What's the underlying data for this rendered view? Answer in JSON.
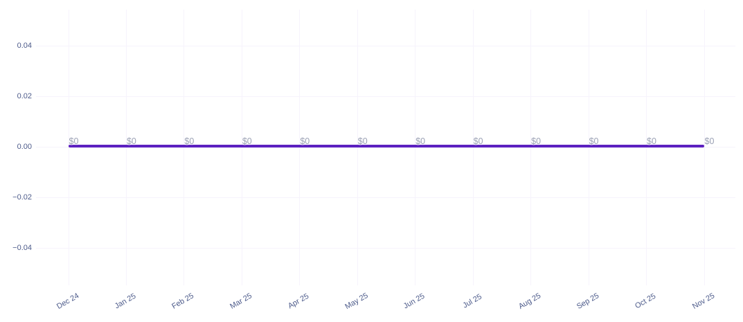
{
  "chart_data": {
    "type": "line",
    "title": "",
    "xlabel": "",
    "ylabel": "",
    "x": [
      "Dec 24",
      "Jan 25",
      "Feb 25",
      "Mar 25",
      "Apr 25",
      "May 25",
      "Jun 25",
      "Jul 25",
      "Aug 25",
      "Sep 25",
      "Oct 25",
      "Nov 25"
    ],
    "series": [
      {
        "name": "value",
        "values": [
          0,
          0,
          0,
          0,
          0,
          0,
          0,
          0,
          0,
          0,
          0,
          0
        ],
        "point_labels": [
          "$0",
          "$0",
          "$0",
          "$0",
          "$0",
          "$0",
          "$0",
          "$0",
          "$0",
          "$0",
          "$0",
          "$0"
        ],
        "color": "#5c20c0"
      }
    ],
    "y_ticks": [
      "0.04",
      "0.02",
      "0.00",
      "−0.02",
      "−0.04"
    ],
    "y_tick_values": [
      0.04,
      0.02,
      0.0,
      -0.02,
      -0.04
    ],
    "ylim": [
      -0.055,
      0.055
    ],
    "grid": true,
    "legend": "none",
    "colors": {
      "background": "#ffffff",
      "line": "#5c20c0",
      "tick_label": "#4c5a8a",
      "point_label": "#9aa0b4",
      "gridline": "#f6f3fc"
    }
  }
}
